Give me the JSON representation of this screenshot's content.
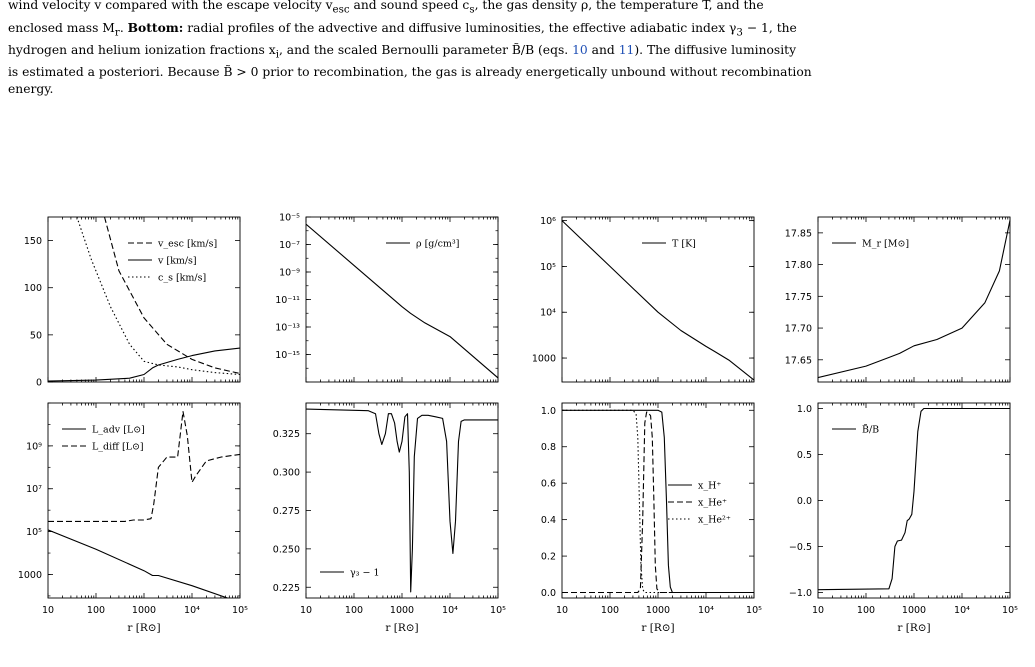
{
  "caption": {
    "line1_pre": "wind velocity v compared with the escape velocity v",
    "line1_sub": "esc",
    "line1_post": " and sound speed c",
    "line1_sub2": "s",
    "line1_tail": ", the gas density ρ, the temperature T, and the",
    "line2_pre": "enclosed mass M",
    "line2_sub": "r",
    "line2_bold": "Bottom:",
    "line2_post": " radial profiles of the advective and diffusive luminosities, the effective adiabatic index γ",
    "line2_sub2": "3",
    "line2_tail": " − 1, the",
    "line3_pre": "hydrogen and helium ionization fractions x",
    "line3_sub": "i",
    "line3_mid": ", and the scaled Bernoulli parameter B̃/B (eqs. ",
    "ref1": "10",
    "line3_and": " and ",
    "ref2": "11",
    "line3_tail": "). The diffusive luminosity",
    "line4_pre": "is estimated a posteriori. Because B̃ > 0 prior to recombination, the gas is already energetically unbound without recombination",
    "line5": "energy."
  },
  "x_axis": {
    "label": "r [R⊙]",
    "ticks": [
      {
        "v": 10,
        "label": "10"
      },
      {
        "v": 100,
        "label": "100"
      },
      {
        "v": 1000,
        "label": "1000"
      },
      {
        "v": 10000,
        "label": "10⁴"
      },
      {
        "v": 100000,
        "label": "10⁵"
      }
    ]
  },
  "chart_data": [
    {
      "id": "velocity",
      "type": "line",
      "xscale": "log",
      "yscale": "linear",
      "xlim": [
        10,
        100000
      ],
      "ylim": [
        0,
        175
      ],
      "yticks": [
        {
          "v": 0,
          "label": "0"
        },
        {
          "v": 50,
          "label": "50"
        },
        {
          "v": 100,
          "label": "100"
        },
        {
          "v": 150,
          "label": "150"
        }
      ],
      "legend": "top-right",
      "series": [
        {
          "name": "v_esc [km/s]",
          "dash": "6,3",
          "x": [
            150,
            300,
            1000,
            3000,
            10000,
            30000,
            100000
          ],
          "y": [
            175,
            118,
            68,
            40,
            24,
            15,
            9
          ]
        },
        {
          "name": "v [km/s]",
          "dash": "",
          "x": [
            10,
            100,
            500,
            1000,
            1500,
            2000,
            5000,
            10000,
            30000,
            100000
          ],
          "y": [
            1,
            2,
            4,
            8,
            15,
            18,
            24,
            28,
            33,
            36
          ]
        },
        {
          "name": "c_s [km/s]",
          "dash": "1.5,2.5",
          "x": [
            40,
            80,
            200,
            500,
            1000,
            2000,
            5000,
            10000,
            30000,
            100000
          ],
          "y": [
            175,
            130,
            80,
            40,
            22,
            18,
            16,
            13,
            10,
            8
          ]
        }
      ]
    },
    {
      "id": "density",
      "type": "line",
      "xscale": "log",
      "yscale": "log",
      "xlim": [
        10,
        100000
      ],
      "ylim": [
        1e-17,
        1e-05
      ],
      "yticks": [
        {
          "v": 1e-05,
          "label": "10⁻⁵"
        },
        {
          "v": 1e-07,
          "label": "10⁻⁷"
        },
        {
          "v": 1e-09,
          "label": "10⁻⁹"
        },
        {
          "v": 1e-11,
          "label": "10⁻¹¹"
        },
        {
          "v": 1e-13,
          "label": "10⁻¹³"
        },
        {
          "v": 1e-15,
          "label": "10⁻¹⁵"
        }
      ],
      "legend": "top-right",
      "series": [
        {
          "name": "ρ [g/cm³]",
          "dash": "",
          "x": [
            10,
            100,
            1000,
            1500,
            3000,
            10000,
            100000
          ],
          "y": [
            3e-06,
            3e-09,
            3e-12,
            1e-12,
            2e-13,
            2e-14,
            2e-17
          ]
        }
      ]
    },
    {
      "id": "temperature",
      "type": "line",
      "xscale": "log",
      "yscale": "log",
      "xlim": [
        10,
        100000
      ],
      "ylim": [
        300,
        1200000
      ],
      "yticks": [
        {
          "v": 1000000,
          "label": "10⁶"
        },
        {
          "v": 100000,
          "label": "10⁵"
        },
        {
          "v": 10000,
          "label": "10⁴"
        },
        {
          "v": 1000,
          "label": "1000"
        }
      ],
      "legend": "top-right",
      "series": [
        {
          "name": "T [K]",
          "dash": "",
          "x": [
            10,
            100,
            1000,
            3000,
            10000,
            15000,
            30000,
            100000
          ],
          "y": [
            1000000,
            100000,
            10000,
            4000,
            1800,
            1400,
            900,
            330
          ]
        }
      ]
    },
    {
      "id": "mass",
      "type": "line",
      "xscale": "log",
      "yscale": "linear",
      "xlim": [
        10,
        100000
      ],
      "ylim": [
        17.615,
        17.875
      ],
      "yticks": [
        {
          "v": 17.65,
          "label": "17.65"
        },
        {
          "v": 17.7,
          "label": "17.70"
        },
        {
          "v": 17.75,
          "label": "17.75"
        },
        {
          "v": 17.8,
          "label": "17.80"
        },
        {
          "v": 17.85,
          "label": "17.85"
        }
      ],
      "legend": "top-left",
      "series": [
        {
          "name": "M_r [M⊙]",
          "dash": "",
          "x": [
            10,
            100,
            500,
            1000,
            3000,
            10000,
            30000,
            60000,
            100000
          ],
          "y": [
            17.622,
            17.64,
            17.66,
            17.672,
            17.682,
            17.7,
            17.74,
            17.79,
            17.87
          ]
        }
      ]
    },
    {
      "id": "luminosity",
      "type": "line",
      "xscale": "log",
      "yscale": "log",
      "xlim": [
        10,
        100000
      ],
      "ylim": [
        80,
        100000000000.0
      ],
      "yticks": [
        {
          "v": 1000000000.0,
          "label": "10⁹"
        },
        {
          "v": 10000000.0,
          "label": "10⁷"
        },
        {
          "v": 100000.0,
          "label": "10⁵"
        },
        {
          "v": 1000,
          "label": "1000"
        }
      ],
      "legend": "top-left",
      "series": [
        {
          "name": "L_adv [L⊙]",
          "dash": "",
          "x": [
            10,
            100,
            1000,
            1500,
            2000,
            10000,
            100000
          ],
          "y": [
            120000,
            15000,
            1500,
            900,
            900,
            300,
            50
          ]
        },
        {
          "name": "L_diff [L⊙]",
          "dash": "6,3",
          "x": [
            10,
            100,
            400,
            600,
            1000,
            1400,
            1600,
            2000,
            3000,
            5000,
            6500,
            8000,
            10000,
            12000,
            20000,
            40000,
            100000
          ],
          "y": [
            300000,
            300000,
            300000,
            350000,
            350000,
            400000,
            2000000,
            100000000,
            300000000,
            300000000,
            40000000000,
            3000000000,
            20000000,
            40000000,
            200000000,
            300000000,
            400000000
          ]
        }
      ]
    },
    {
      "id": "gamma",
      "type": "line",
      "xscale": "log",
      "yscale": "linear",
      "xlim": [
        10,
        100000
      ],
      "ylim": [
        0.218,
        0.345
      ],
      "yticks": [
        {
          "v": 0.225,
          "label": "0.225"
        },
        {
          "v": 0.25,
          "label": "0.250"
        },
        {
          "v": 0.275,
          "label": "0.275"
        },
        {
          "v": 0.3,
          "label": "0.300"
        },
        {
          "v": 0.325,
          "label": "0.325"
        }
      ],
      "legend": "bottom-left",
      "series": [
        {
          "name": "γ₃ − 1",
          "dash": "",
          "x": [
            10,
            200,
            280,
            330,
            380,
            450,
            520,
            600,
            700,
            790,
            880,
            1000,
            1150,
            1300,
            1420,
            1520,
            1650,
            1800,
            2100,
            2600,
            3500,
            5000,
            7000,
            8500,
            10000,
            11500,
            13000,
            15000,
            17000,
            20000,
            30000,
            100000
          ],
          "y": [
            0.341,
            0.34,
            0.338,
            0.325,
            0.318,
            0.325,
            0.338,
            0.338,
            0.332,
            0.32,
            0.313,
            0.32,
            0.336,
            0.338,
            0.3,
            0.222,
            0.25,
            0.31,
            0.335,
            0.337,
            0.337,
            0.336,
            0.335,
            0.32,
            0.268,
            0.247,
            0.268,
            0.32,
            0.333,
            0.334,
            0.334,
            0.334
          ]
        }
      ]
    },
    {
      "id": "ionization",
      "type": "line",
      "xscale": "log",
      "yscale": "linear",
      "xlim": [
        10,
        100000
      ],
      "ylim": [
        -0.03,
        1.04
      ],
      "yticks": [
        {
          "v": 0,
          "label": "0.0"
        },
        {
          "v": 0.2,
          "label": "0.2"
        },
        {
          "v": 0.4,
          "label": "0.4"
        },
        {
          "v": 0.6,
          "label": "0.6"
        },
        {
          "v": 0.8,
          "label": "0.8"
        },
        {
          "v": 1.0,
          "label": "1.0"
        }
      ],
      "legend": "center-right",
      "series": [
        {
          "name": "x_H⁺",
          "dash": "",
          "x": [
            10,
            1000,
            1200,
            1350,
            1500,
            1650,
            1800,
            2000,
            100000
          ],
          "y": [
            1,
            1,
            0.99,
            0.85,
            0.5,
            0.15,
            0.03,
            0,
            0
          ]
        },
        {
          "name": "x_He⁺",
          "dash": "6,3",
          "x": [
            10,
            380,
            430,
            480,
            530,
            580,
            620,
            700,
            760,
            820,
            880,
            950,
            1100,
            100000
          ],
          "y": [
            0,
            0,
            0.02,
            0.4,
            0.93,
            0.99,
            0.99,
            0.97,
            0.85,
            0.5,
            0.15,
            0.02,
            0,
            0
          ]
        },
        {
          "name": "x_He²⁺",
          "dash": "1.5,2.5",
          "x": [
            10,
            300,
            350,
            380,
            410,
            440,
            480,
            520,
            100000
          ],
          "y": [
            1,
            1,
            0.98,
            0.85,
            0.5,
            0.15,
            0.02,
            0,
            0
          ]
        }
      ]
    },
    {
      "id": "bernoulli",
      "type": "line",
      "xscale": "log",
      "yscale": "linear",
      "xlim": [
        10,
        100000
      ],
      "ylim": [
        -1.06,
        1.06
      ],
      "yticks": [
        {
          "v": -1,
          "label": "−1.0"
        },
        {
          "v": -0.5,
          "label": "−0.5"
        },
        {
          "v": 0,
          "label": "0.0"
        },
        {
          "v": 0.5,
          "label": "0.5"
        },
        {
          "v": 1,
          "label": "1.0"
        }
      ],
      "legend": "top-left",
      "series": [
        {
          "name": "B̃/B",
          "dash": "",
          "x": [
            10,
            300,
            350,
            400,
            450,
            550,
            650,
            720,
            800,
            900,
            1000,
            1200,
            1400,
            1600,
            1800,
            2000,
            100000
          ],
          "y": [
            -0.97,
            -0.96,
            -0.85,
            -0.5,
            -0.44,
            -0.43,
            -0.35,
            -0.22,
            -0.2,
            -0.15,
            0.1,
            0.75,
            0.97,
            1,
            1,
            1,
            1
          ]
        }
      ]
    }
  ]
}
